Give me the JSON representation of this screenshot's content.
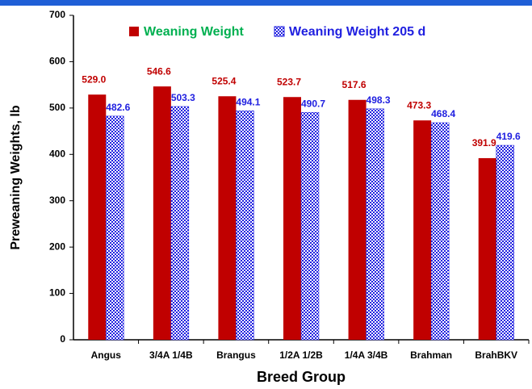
{
  "chart_data": {
    "type": "bar",
    "categories": [
      "Angus",
      "3/4A 1/4B",
      "Brangus",
      "1/2A 1/2B",
      "1/4A 3/4B",
      "Brahman",
      "BrahBKV"
    ],
    "series": [
      {
        "name": "Weaning Weight",
        "color": "#c00000",
        "values": [
          529.0,
          546.6,
          525.4,
          523.7,
          517.6,
          473.3,
          391.9
        ],
        "value_labels": [
          "529.0",
          "546.6",
          "525.4",
          "523.7",
          "517.6",
          "473.3",
          "391.9"
        ]
      },
      {
        "name": "Weaning Weight 205 d",
        "color": "#2020e0",
        "values": [
          482.6,
          503.3,
          494.1,
          490.7,
          498.3,
          468.4,
          419.6
        ],
        "value_labels": [
          "482.6",
          "503.3",
          "494.1",
          "490.7",
          "498.3",
          "468.4",
          "419.6"
        ]
      }
    ],
    "ylabel": "Preweaning Weights, lb",
    "xlabel": "Breed Group",
    "ylim": [
      0,
      700
    ],
    "yticks": [
      0,
      100,
      200,
      300,
      400,
      500,
      600,
      700
    ]
  }
}
